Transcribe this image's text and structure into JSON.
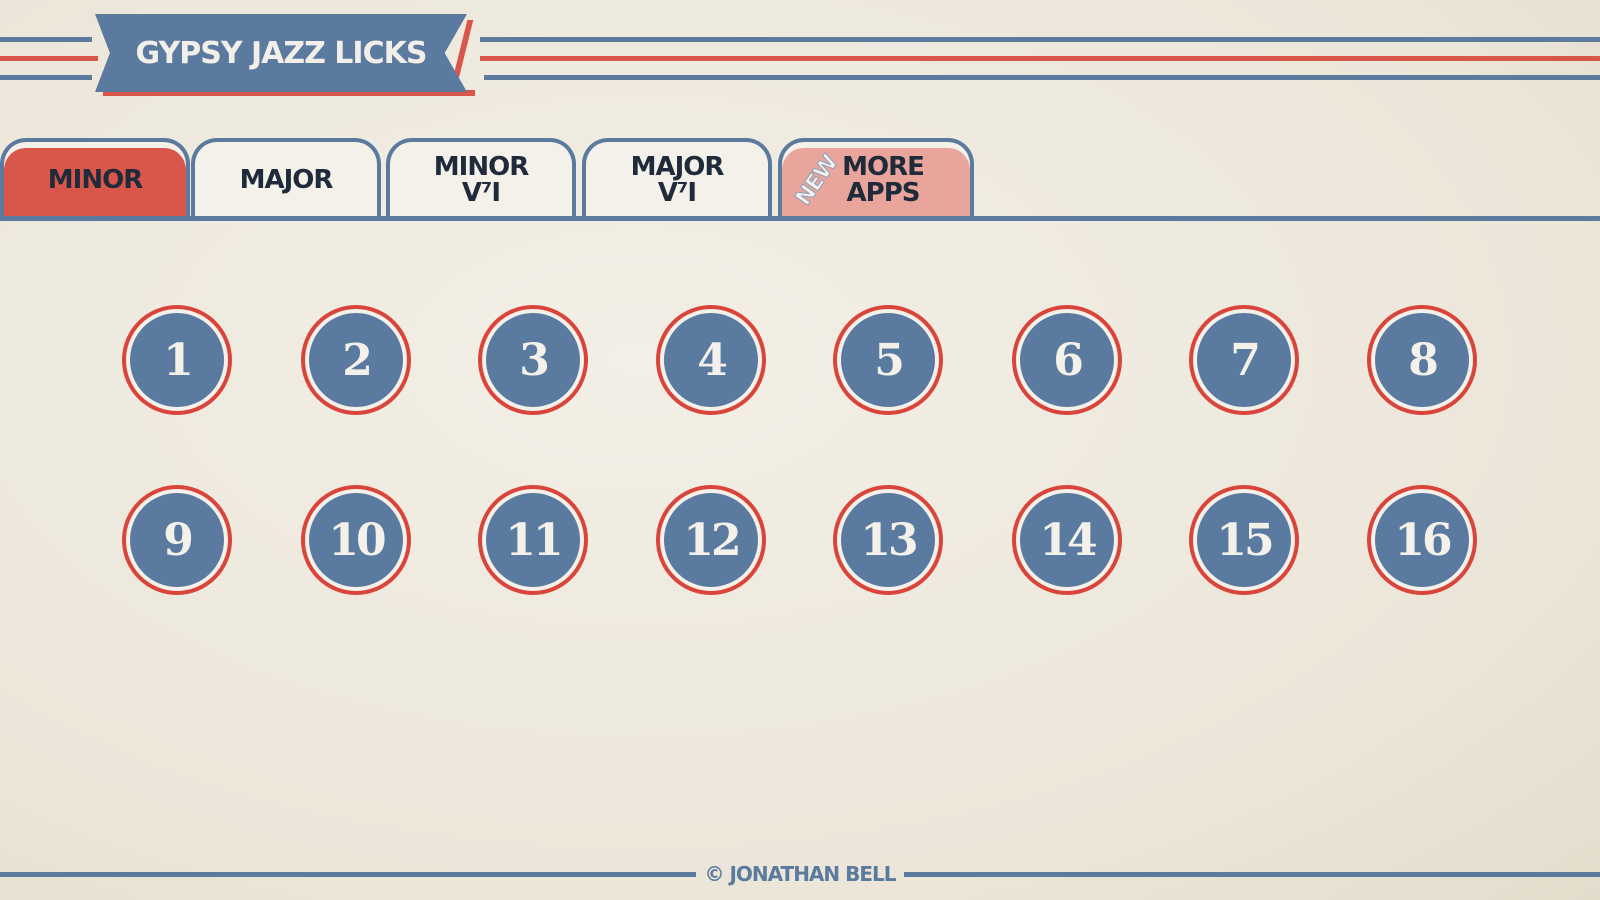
{
  "header": {
    "title": "GYPSY JAZZ LICKS"
  },
  "tabs": [
    {
      "label": "MINOR",
      "active": true
    },
    {
      "label": "MAJOR"
    },
    {
      "label_line1": "MINOR",
      "label_line2": "V⁷I"
    },
    {
      "label_line1": "MAJOR",
      "label_line2": "V⁷I"
    },
    {
      "badge": "NEW",
      "label_line1": "MORE",
      "label_line2": "APPS"
    }
  ],
  "licks": [
    "1",
    "2",
    "3",
    "4",
    "5",
    "6",
    "7",
    "8",
    "9",
    "10",
    "11",
    "12",
    "13",
    "14",
    "15",
    "16"
  ],
  "footer": {
    "copyright": "© JONATHAN BELL"
  },
  "colors": {
    "blue": "#5b7aa0",
    "red": "#d9574a",
    "paper": "#f1ece2"
  }
}
